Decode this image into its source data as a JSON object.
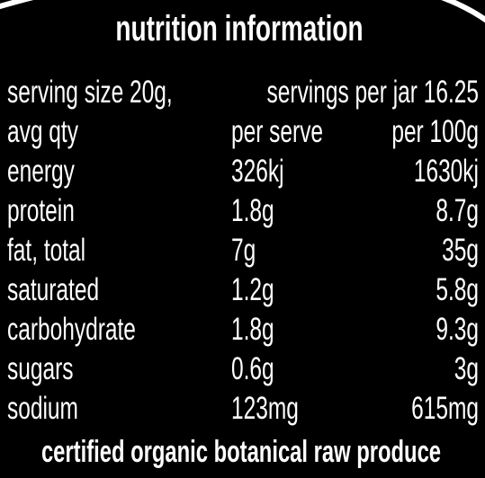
{
  "title": "nutrition information",
  "serving": {
    "size": "serving size 20g,",
    "per_jar": "servings per jar 16.25"
  },
  "table": {
    "header": [
      "avg qty",
      "per serve",
      "per 100g"
    ],
    "rows": [
      [
        "energy",
        "326kj",
        "1630kj"
      ],
      [
        "protein",
        "1.8g",
        "8.7g"
      ],
      [
        "fat, total",
        "7g",
        "35g"
      ],
      [
        "saturated",
        "1.2g",
        "5.8g"
      ],
      [
        "carbohydrate",
        "1.8g",
        "9.3g"
      ],
      [
        "sugars",
        "0.6g",
        "3g"
      ],
      [
        "sodium",
        "123mg",
        "615mg"
      ]
    ]
  },
  "footer": "certified organic botanical raw produce"
}
